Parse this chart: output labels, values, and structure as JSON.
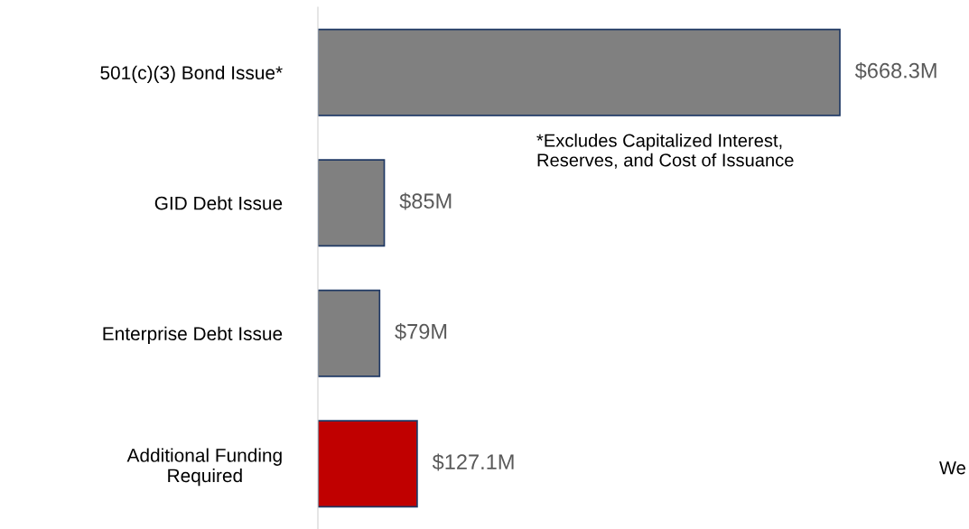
{
  "chart_data": {
    "type": "bar",
    "orientation": "horizontal",
    "categories": [
      "501(c)(3) Bond Issue*",
      "GID Debt Issue",
      "Enterprise Debt Issue",
      "Additional Funding\nRequired"
    ],
    "values": [
      668.3,
      85,
      79,
      127.1
    ],
    "colors": [
      "#808080",
      "#808080",
      "#808080",
      "#c00000"
    ],
    "value_labels": [
      "$668.3M",
      "$85M",
      "$79M",
      "$127.1M"
    ],
    "annotations": [
      "*Excludes Capitalized Interest,\nReserves, and Cost of Issuance",
      "We"
    ],
    "grid": false,
    "legend": false
  }
}
